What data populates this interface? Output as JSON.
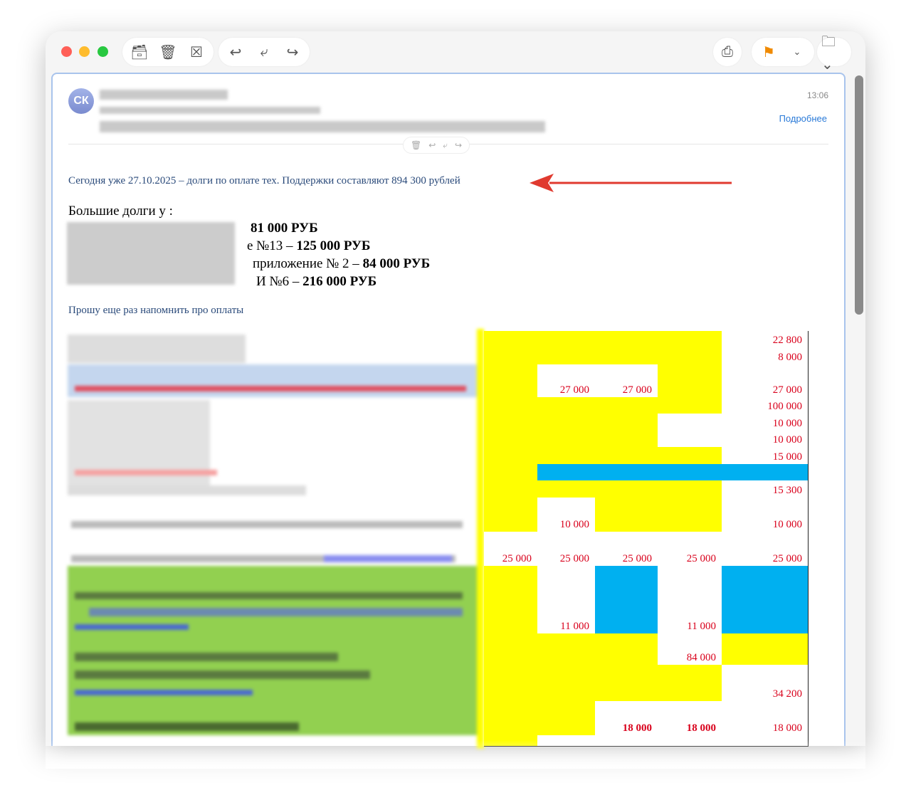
{
  "window": {
    "controls": [
      "close",
      "minimize",
      "zoom"
    ],
    "toolbar_left": [
      {
        "icon": "archive-icon"
      },
      {
        "icon": "trash-icon"
      },
      {
        "icon": "junk-icon"
      }
    ],
    "toolbar_reply": [
      {
        "icon": "reply-icon"
      },
      {
        "icon": "reply-all-icon"
      },
      {
        "icon": "forward-icon"
      }
    ],
    "toolbar_right": [
      {
        "icon": "print-icon"
      },
      {
        "icon": "flag-icon"
      },
      {
        "icon": "folder-icon"
      }
    ]
  },
  "message": {
    "avatar_initials": "СК",
    "time": "13:06",
    "details_link": "Подробнее",
    "line1": "Сегодня уже 27.10.2025 – долги по оплате тех. Поддержки составляют  894 300 рублей",
    "debts_heading": "Большие долги у :",
    "debts": [
      {
        "prefix": "",
        "amount": "81 000 РУБ"
      },
      {
        "prefix": "е №13 – ",
        "amount": "125 000 РУБ"
      },
      {
        "prefix": "приложение № 2 – ",
        "amount": "84 000 РУБ"
      },
      {
        "prefix": "И №6 – ",
        "amount": "216 000 РУБ"
      }
    ],
    "reminder": "Прошу еще раз напомнить про оплаты"
  },
  "colors": {
    "yellow": "#ffff00",
    "blue": "#00b0f0",
    "white": "#ffffff",
    "value_red": "#d9001b",
    "arrow_red": "#e03a2f",
    "green": "#92d050"
  },
  "table": {
    "rows": [
      [
        [
          "Y",
          ""
        ],
        [
          "Y",
          ""
        ],
        [
          "Y",
          ""
        ],
        [
          "Y",
          ""
        ],
        [
          "W",
          "22 800"
        ]
      ],
      [
        [
          "Y",
          ""
        ],
        [
          "Y",
          ""
        ],
        [
          "Y",
          ""
        ],
        [
          "Y",
          ""
        ],
        [
          "W",
          "8 000"
        ]
      ],
      [
        [
          "Y",
          ""
        ],
        [
          "W",
          "27 000"
        ],
        [
          "W",
          "27 000"
        ],
        [
          "Y",
          ""
        ],
        [
          "W",
          "27 000"
        ]
      ],
      [
        [
          "Y",
          ""
        ],
        [
          "Y",
          ""
        ],
        [
          "Y",
          ""
        ],
        [
          "Y",
          ""
        ],
        [
          "W",
          "100 000"
        ]
      ],
      [
        [
          "Y",
          ""
        ],
        [
          "Y",
          ""
        ],
        [
          "Y",
          ""
        ],
        [
          "W",
          ""
        ],
        [
          "W",
          "10 000"
        ]
      ],
      [
        [
          "Y",
          ""
        ],
        [
          "Y",
          ""
        ],
        [
          "Y",
          ""
        ],
        [
          "W",
          ""
        ],
        [
          "W",
          "10 000"
        ]
      ],
      [
        [
          "Y",
          ""
        ],
        [
          "Y",
          ""
        ],
        [
          "Y",
          ""
        ],
        [
          "Y",
          ""
        ],
        [
          "W",
          "15 000"
        ]
      ],
      [
        [
          "Y",
          ""
        ],
        [
          "B",
          ""
        ],
        [
          "B",
          ""
        ],
        [
          "B",
          ""
        ],
        [
          "B",
          ""
        ]
      ],
      [
        [
          "Y",
          ""
        ],
        [
          "Y",
          ""
        ],
        [
          "Y",
          ""
        ],
        [
          "Y",
          ""
        ],
        [
          "W",
          "15 300"
        ]
      ],
      [
        [
          "Y",
          ""
        ],
        [
          "W",
          "10 000"
        ],
        [
          "Y",
          ""
        ],
        [
          "Y",
          ""
        ],
        [
          "W",
          "10 000"
        ]
      ],
      [
        [
          "W",
          "25 000"
        ],
        [
          "W",
          "25 000"
        ],
        [
          "W",
          "25 000"
        ],
        [
          "W",
          "25 000"
        ],
        [
          "W",
          "25 000"
        ]
      ],
      [
        [
          "Y",
          ""
        ],
        [
          "W",
          "11 000"
        ],
        [
          "B",
          ""
        ],
        [
          "W",
          "11 000"
        ],
        [
          "B",
          ""
        ]
      ],
      [
        [
          "Y",
          ""
        ],
        [
          "Y",
          ""
        ],
        [
          "Y",
          ""
        ],
        [
          "W",
          "84 000"
        ],
        [
          "Y",
          ""
        ]
      ],
      [
        [
          "Y",
          ""
        ],
        [
          "Y",
          ""
        ],
        [
          "Y",
          ""
        ],
        [
          "Y",
          ""
        ],
        [
          "W",
          "34 200"
        ]
      ],
      [
        [
          "Y",
          ""
        ],
        [
          "Y",
          ""
        ],
        [
          "W",
          "18 000",
          "bold"
        ],
        [
          "W",
          "18 000",
          "bold"
        ],
        [
          "W",
          "18 000"
        ]
      ],
      [
        [
          "Y",
          ""
        ],
        [
          "W",
          ""
        ],
        [
          "W",
          ""
        ],
        [
          "W",
          ""
        ],
        [
          "W",
          ""
        ]
      ]
    ]
  }
}
